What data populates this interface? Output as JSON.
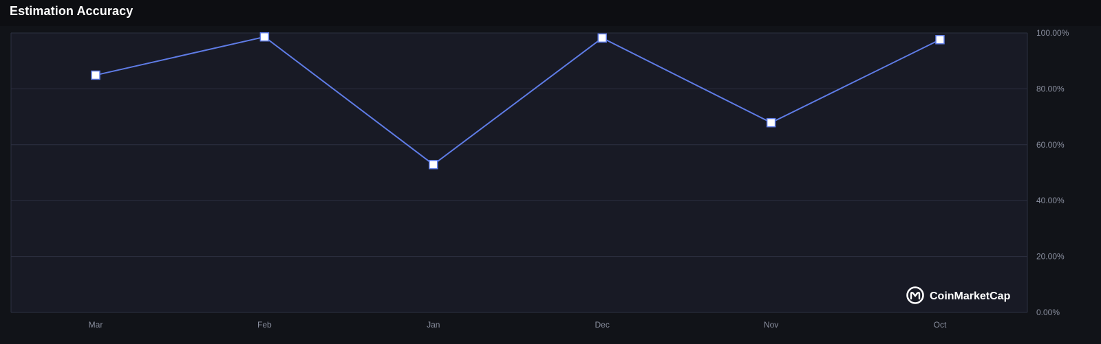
{
  "header": {
    "title": "Estimation Accuracy"
  },
  "brand": {
    "name": "CoinMarketCap",
    "icon": "coinmarketcap-logo-icon"
  },
  "colors": {
    "background": "#0d0e12",
    "plot_background": "#181a25",
    "grid": "#2c3041",
    "line": "#5f7ce6",
    "marker_fill": "#ffffff",
    "tick_text": "#8b90a0"
  },
  "chart_data": {
    "type": "line",
    "title": "Estimation Accuracy",
    "xlabel": "",
    "ylabel": "",
    "categories": [
      "Mar",
      "Feb",
      "Jan",
      "Dec",
      "Nov",
      "Oct"
    ],
    "series": [
      {
        "values": [
          84.9,
          98.6,
          52.9,
          98.2,
          67.9,
          97.6
        ]
      }
    ],
    "ylim": [
      0,
      100
    ],
    "yticks": [
      "0.00%",
      "20.00%",
      "40.00%",
      "60.00%",
      "80.00%",
      "100.00%"
    ],
    "y_axis_position": "right",
    "grid": true,
    "legend": "none",
    "marker": "square"
  }
}
